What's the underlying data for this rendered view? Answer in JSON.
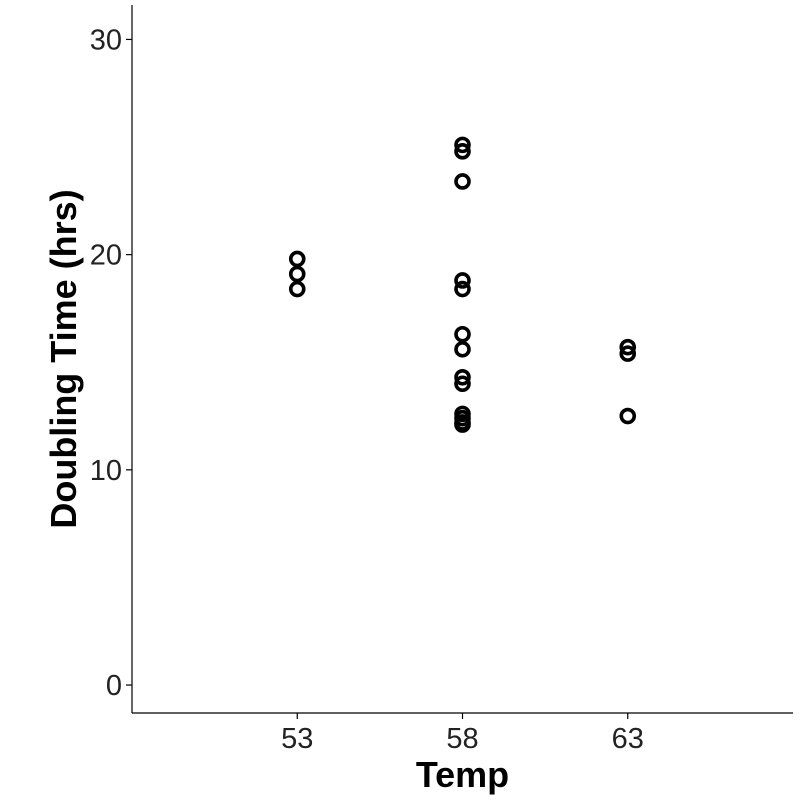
{
  "chart_data": {
    "type": "scatter",
    "title": "",
    "xlabel": "Temp",
    "ylabel": "Doubling Time (hrs)",
    "x_categories": [
      "53",
      "58",
      "63"
    ],
    "y_ticks": [
      0,
      10,
      20,
      30
    ],
    "ylim": [
      -1.3,
      31.6
    ],
    "grid": false,
    "legend": "none",
    "point_color": "#000000",
    "series": [
      {
        "points": [
          {
            "x": "53",
            "y": 19.8
          },
          {
            "x": "53",
            "y": 19.1
          },
          {
            "x": "53",
            "y": 18.4
          },
          {
            "x": "58",
            "y": 25.1
          },
          {
            "x": "58",
            "y": 24.8
          },
          {
            "x": "58",
            "y": 23.4
          },
          {
            "x": "58",
            "y": 18.8
          },
          {
            "x": "58",
            "y": 18.4
          },
          {
            "x": "58",
            "y": 16.3
          },
          {
            "x": "58",
            "y": 15.6
          },
          {
            "x": "58",
            "y": 14.3
          },
          {
            "x": "58",
            "y": 14.0
          },
          {
            "x": "58",
            "y": 12.6
          },
          {
            "x": "58",
            "y": 12.4
          },
          {
            "x": "58",
            "y": 12.2
          },
          {
            "x": "58",
            "y": 12.1
          },
          {
            "x": "63",
            "y": 15.7
          },
          {
            "x": "63",
            "y": 15.4
          },
          {
            "x": "63",
            "y": 12.5
          }
        ]
      }
    ]
  }
}
